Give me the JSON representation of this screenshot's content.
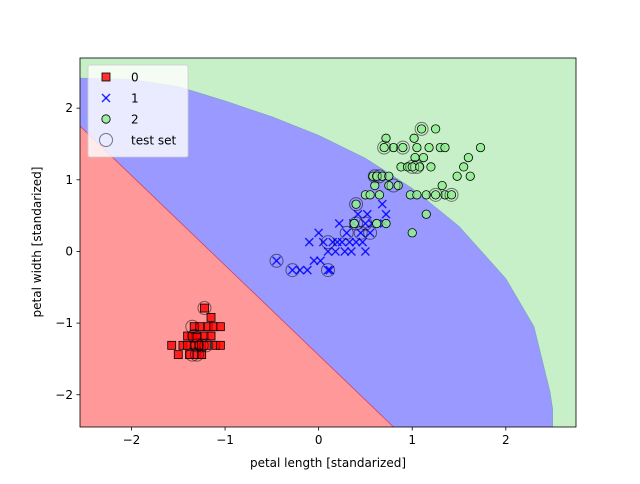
{
  "chart_data": {
    "type": "scatter",
    "title": "",
    "xlabel": "petal length [standarized]",
    "ylabel": "petal width [standarized]",
    "xlim": [
      -2.55,
      2.75
    ],
    "ylim": [
      -2.45,
      2.7
    ],
    "xticks": [
      -2,
      -1,
      0,
      1,
      2
    ],
    "yticks": [
      -2,
      -1,
      0,
      1,
      2
    ],
    "xtick_labels": [
      "−2",
      "−1",
      "0",
      "1",
      "2"
    ],
    "ytick_labels": [
      "−2",
      "−1",
      "0",
      "1",
      "2"
    ],
    "grid": false,
    "legend_position": "upper-left",
    "decision_regions": {
      "class_0_color": "#ff9999",
      "class_1_color": "#9999ff",
      "class_2_color": "#c8f0c8",
      "boundary_0_1": [
        [
          -2.55,
          1.75
        ],
        [
          0.8,
          -2.45
        ]
      ],
      "boundary_1_2": [
        [
          -2.55,
          2.42
        ],
        [
          -2.0,
          2.4
        ],
        [
          -1.5,
          2.3
        ],
        [
          -1.0,
          2.1
        ],
        [
          -0.5,
          1.88
        ],
        [
          0.0,
          1.62
        ],
        [
          0.5,
          1.3
        ],
        [
          1.0,
          0.88
        ],
        [
          1.5,
          0.35
        ],
        [
          2.0,
          -0.38
        ],
        [
          2.3,
          -1.05
        ],
        [
          2.47,
          -1.95
        ],
        [
          2.5,
          -2.2
        ],
        [
          2.5,
          -2.45
        ]
      ]
    },
    "series": [
      {
        "name": "0",
        "marker": "square",
        "color": "#ff0000",
        "points": [
          [
            -1.57,
            -1.31
          ],
          [
            -1.5,
            -1.44
          ],
          [
            -1.45,
            -1.31
          ],
          [
            -1.4,
            -1.18
          ],
          [
            -1.4,
            -1.31
          ],
          [
            -1.38,
            -1.44
          ],
          [
            -1.35,
            -1.18
          ],
          [
            -1.33,
            -1.31
          ],
          [
            -1.33,
            -1.05
          ],
          [
            -1.3,
            -1.44
          ],
          [
            -1.3,
            -1.18
          ],
          [
            -1.28,
            -1.31
          ],
          [
            -1.27,
            -1.05
          ],
          [
            -1.25,
            -1.44
          ],
          [
            -1.25,
            -1.31
          ],
          [
            -1.22,
            -1.18
          ],
          [
            -1.22,
            -0.79
          ],
          [
            -1.2,
            -1.31
          ],
          [
            -1.18,
            -1.05
          ],
          [
            -1.15,
            -1.18
          ],
          [
            -1.15,
            -0.92
          ],
          [
            -1.12,
            -1.05
          ],
          [
            -1.1,
            -1.31
          ],
          [
            -1.05,
            -1.05
          ],
          [
            -1.05,
            -1.31
          ],
          [
            -1.3,
            -1.2
          ]
        ]
      },
      {
        "name": "1",
        "marker": "x",
        "color": "#0000ff",
        "points": [
          [
            -0.45,
            -0.13
          ],
          [
            -0.28,
            -0.26
          ],
          [
            -0.2,
            -0.26
          ],
          [
            -0.12,
            -0.26
          ],
          [
            -0.1,
            0.13
          ],
          [
            -0.05,
            -0.13
          ],
          [
            0.0,
            0.26
          ],
          [
            0.02,
            -0.13
          ],
          [
            0.05,
            0.13
          ],
          [
            0.1,
            0.0
          ],
          [
            0.12,
            -0.26
          ],
          [
            0.15,
            0.13
          ],
          [
            0.18,
            0.0
          ],
          [
            0.2,
            0.13
          ],
          [
            0.22,
            0.39
          ],
          [
            0.25,
            0.13
          ],
          [
            0.28,
            0.0
          ],
          [
            0.3,
            0.26
          ],
          [
            0.33,
            0.13
          ],
          [
            0.35,
            0.0
          ],
          [
            0.37,
            0.39
          ],
          [
            0.4,
            0.13
          ],
          [
            0.42,
            0.52
          ],
          [
            0.45,
            0.26
          ],
          [
            0.47,
            0.13
          ],
          [
            0.5,
            0.39
          ],
          [
            0.5,
            0.0
          ],
          [
            0.52,
            0.52
          ],
          [
            0.55,
            0.26
          ],
          [
            0.57,
            0.39
          ],
          [
            0.68,
            0.66
          ],
          [
            0.7,
            0.39
          ],
          [
            0.72,
            0.52
          ],
          [
            0.1,
            -0.26
          ]
        ]
      },
      {
        "name": "2",
        "marker": "circle",
        "color": "#90ee90",
        "points": [
          [
            0.4,
            0.66
          ],
          [
            0.5,
            0.79
          ],
          [
            0.55,
            0.79
          ],
          [
            0.58,
            1.05
          ],
          [
            0.6,
            0.92
          ],
          [
            0.62,
            1.05
          ],
          [
            0.65,
            0.79
          ],
          [
            0.68,
            1.05
          ],
          [
            0.7,
            1.45
          ],
          [
            0.72,
            1.58
          ],
          [
            0.75,
            0.92
          ],
          [
            0.75,
            1.05
          ],
          [
            0.8,
            1.45
          ],
          [
            0.85,
            0.92
          ],
          [
            0.88,
            1.18
          ],
          [
            0.9,
            1.45
          ],
          [
            0.95,
            1.18
          ],
          [
            0.98,
            0.79
          ],
          [
            1.0,
            1.18
          ],
          [
            1.02,
            1.58
          ],
          [
            1.03,
            1.31
          ],
          [
            1.05,
            0.79
          ],
          [
            1.05,
            1.45
          ],
          [
            1.08,
            1.18
          ],
          [
            1.1,
            1.71
          ],
          [
            1.12,
            1.31
          ],
          [
            1.15,
            0.52
          ],
          [
            1.15,
            0.79
          ],
          [
            1.18,
            1.45
          ],
          [
            1.2,
            1.18
          ],
          [
            1.25,
            0.79
          ],
          [
            1.25,
            1.71
          ],
          [
            1.3,
            1.45
          ],
          [
            1.32,
            0.92
          ],
          [
            1.35,
            0.79
          ],
          [
            1.35,
            1.45
          ],
          [
            1.42,
            0.79
          ],
          [
            1.48,
            1.05
          ],
          [
            1.55,
            1.18
          ],
          [
            1.6,
            1.31
          ],
          [
            1.62,
            1.05
          ],
          [
            1.73,
            1.45
          ],
          [
            0.62,
            0.39
          ],
          [
            1.0,
            0.26
          ],
          [
            0.72,
            0.39
          ],
          [
            0.38,
            0.39
          ]
        ]
      }
    ],
    "test_set": {
      "name": "test set",
      "marker": "open-circle",
      "points": [
        [
          -0.45,
          -0.13
        ],
        [
          -0.28,
          -0.26
        ],
        [
          0.1,
          -0.26
        ],
        [
          0.1,
          0.13
        ],
        [
          0.3,
          0.26
        ],
        [
          0.4,
          0.39
        ],
        [
          0.45,
          0.26
        ],
        [
          0.5,
          0.39
        ],
        [
          0.55,
          0.26
        ],
        [
          0.4,
          0.66
        ],
        [
          0.6,
          1.05
        ],
        [
          0.7,
          1.45
        ],
        [
          0.8,
          0.92
        ],
        [
          0.9,
          1.45
        ],
        [
          1.0,
          1.18
        ],
        [
          1.1,
          1.71
        ],
        [
          1.25,
          0.79
        ],
        [
          1.42,
          0.79
        ],
        [
          -1.35,
          -1.05
        ],
        [
          -1.33,
          -1.18
        ],
        [
          -1.3,
          -1.31
        ],
        [
          -1.3,
          -1.44
        ],
        [
          -1.22,
          -0.79
        ],
        [
          -1.25,
          -1.31
        ],
        [
          -1.2,
          -1.31
        ],
        [
          -1.35,
          -1.44
        ],
        [
          1.05,
          1.18
        ],
        [
          0.65,
          1.05
        ]
      ]
    },
    "legend": [
      {
        "label": "0",
        "marker": "square",
        "color": "#ff0000"
      },
      {
        "label": "1",
        "marker": "x",
        "color": "#0000ff"
      },
      {
        "label": "2",
        "marker": "circle",
        "color": "#90ee90"
      },
      {
        "label": "test set",
        "marker": "open-circle",
        "color": "#6a6a9a"
      }
    ]
  }
}
